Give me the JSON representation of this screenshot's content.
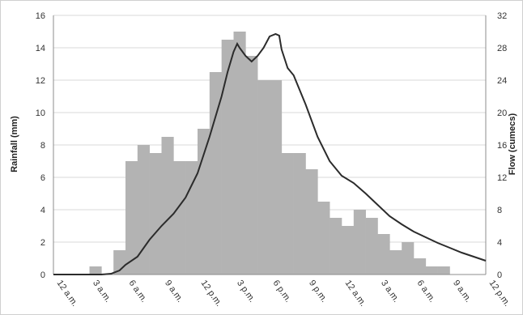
{
  "chart_data": {
    "type": "bar",
    "xlabel": "",
    "ylabel": "Rainfall (mm)",
    "y2label": "Flow (cumecs)",
    "ylim": [
      0,
      16
    ],
    "y2lim": [
      0,
      32
    ],
    "yticks": [
      "0",
      "2",
      "4",
      "6",
      "8",
      "10",
      "12",
      "14",
      "16"
    ],
    "y2ticks": [
      "0",
      "4",
      "8",
      "12",
      "16",
      "20",
      "24",
      "28",
      "32"
    ],
    "xlim_hours": [
      0,
      36
    ],
    "x_ticks": [
      {
        "hour": 0,
        "label": "12 a.m."
      },
      {
        "hour": 3,
        "label": "3 a.m."
      },
      {
        "hour": 6,
        "label": "6 a.m."
      },
      {
        "hour": 9,
        "label": "9 a.m."
      },
      {
        "hour": 12,
        "label": "12 p.m."
      },
      {
        "hour": 15,
        "label": "3 p.m."
      },
      {
        "hour": 18,
        "label": "6 p.m."
      },
      {
        "hour": 21,
        "label": "9 p.m."
      },
      {
        "hour": 24,
        "label": "12 a.m."
      },
      {
        "hour": 27,
        "label": "3 a.m."
      },
      {
        "hour": 30,
        "label": "6 a.m."
      },
      {
        "hour": 33,
        "label": "9 a.m."
      },
      {
        "hour": 36,
        "label": "12 p.m."
      }
    ],
    "grid": true,
    "legend": "none",
    "series": [
      {
        "type": "bar",
        "axis": "left",
        "color": "#b3b3b3",
        "bin_width_hours": 1,
        "bins_start_hour": [
          0,
          1,
          2,
          3,
          4,
          5,
          6,
          7,
          8,
          9,
          10,
          11,
          12,
          13,
          14,
          15,
          16,
          17,
          18,
          19,
          20,
          21,
          22,
          23,
          24,
          25,
          26,
          27,
          28,
          29,
          30,
          31,
          32,
          33,
          34,
          35
        ],
        "values": [
          0,
          0,
          0,
          0.5,
          0,
          1.5,
          7,
          8,
          7.5,
          8.5,
          7,
          7,
          9,
          12.5,
          14.5,
          15,
          13.5,
          12,
          12,
          7.5,
          7.5,
          6.5,
          4.5,
          3.5,
          3,
          4,
          3.5,
          2.5,
          1.5,
          2,
          1,
          0.5,
          0.5,
          0,
          0,
          0
        ]
      },
      {
        "type": "line",
        "axis": "right",
        "color": "#2b2b2b",
        "x": [
          0,
          2,
          4,
          4.8,
          5.5,
          6,
          7,
          8,
          9,
          10,
          11,
          12,
          13,
          14,
          14.5,
          15,
          15.3,
          15.5,
          16,
          16.5,
          17,
          17.5,
          18,
          18.5,
          18.8,
          19,
          19.5,
          20,
          21,
          22,
          23,
          24,
          25,
          26,
          27,
          28,
          29,
          30,
          31,
          32,
          33,
          34,
          35,
          36
        ],
        "y": [
          0,
          0,
          0,
          0.1,
          0.5,
          1.2,
          2.2,
          4.3,
          6,
          7.5,
          9.5,
          12.5,
          17,
          22,
          25,
          27.5,
          28.5,
          28,
          27,
          26.3,
          27,
          28,
          29.4,
          29.7,
          29.5,
          27.8,
          25.5,
          24.6,
          21,
          17,
          14,
          12.2,
          11.3,
          10,
          8.6,
          7.2,
          6.2,
          5.3,
          4.6,
          3.9,
          3.3,
          2.7,
          2.2,
          1.7
        ]
      }
    ]
  }
}
